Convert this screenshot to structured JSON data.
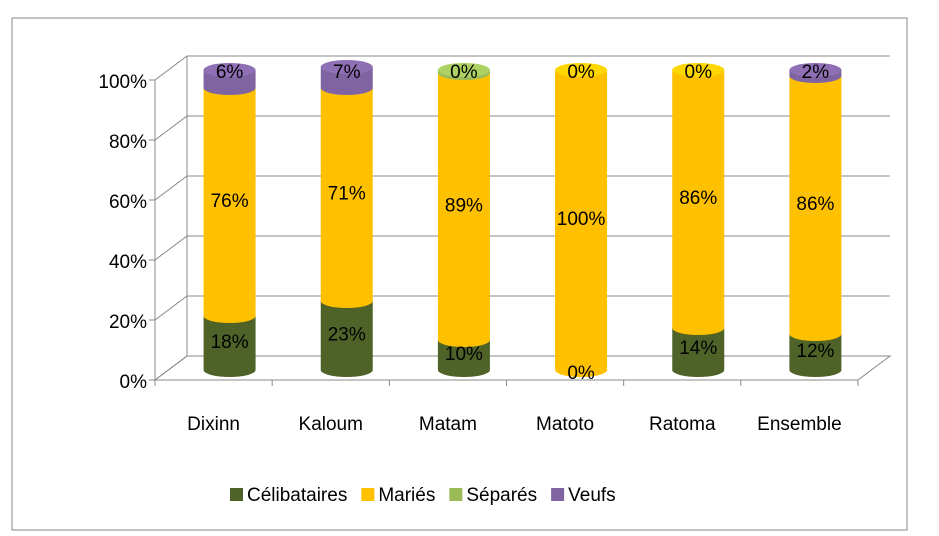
{
  "chart_data": {
    "type": "bar",
    "stacked": true,
    "categories": [
      "Dixinn",
      "Kaloum",
      "Matam",
      "Matoto",
      "Ratoma",
      "Ensemble"
    ],
    "series": [
      {
        "name": "Célibataires",
        "color": "#4f6228",
        "values": [
          18,
          23,
          10,
          0,
          14,
          12
        ],
        "value_labels": [
          "18%",
          "23%",
          "10%",
          "0%",
          "14%",
          "12%"
        ]
      },
      {
        "name": "Mariés",
        "color": "#ffc000",
        "values": [
          76,
          71,
          89,
          100,
          86,
          86
        ],
        "value_labels": [
          "76%",
          "71%",
          "89%",
          "100%",
          "86%",
          "86%"
        ]
      },
      {
        "name": "Séparés",
        "color": "#9bbb59",
        "values": [
          0,
          0,
          1,
          0,
          0,
          0
        ]
      },
      {
        "name": "Veufs",
        "color": "#8064a2",
        "values": [
          6,
          7,
          0,
          0,
          0,
          2
        ],
        "value_labels": [
          "6%",
          "7%",
          "0%",
          "0%",
          "0%",
          "2%"
        ]
      }
    ],
    "ylim": [
      0,
      100
    ],
    "yticks": [
      {
        "value": 0,
        "label": "0%"
      },
      {
        "value": 20,
        "label": "20%"
      },
      {
        "value": 40,
        "label": "40%"
      },
      {
        "value": 60,
        "label": "60%"
      },
      {
        "value": 80,
        "label": "80%"
      },
      {
        "value": 100,
        "label": "100%"
      }
    ],
    "grid": true,
    "legend": "bottom"
  }
}
